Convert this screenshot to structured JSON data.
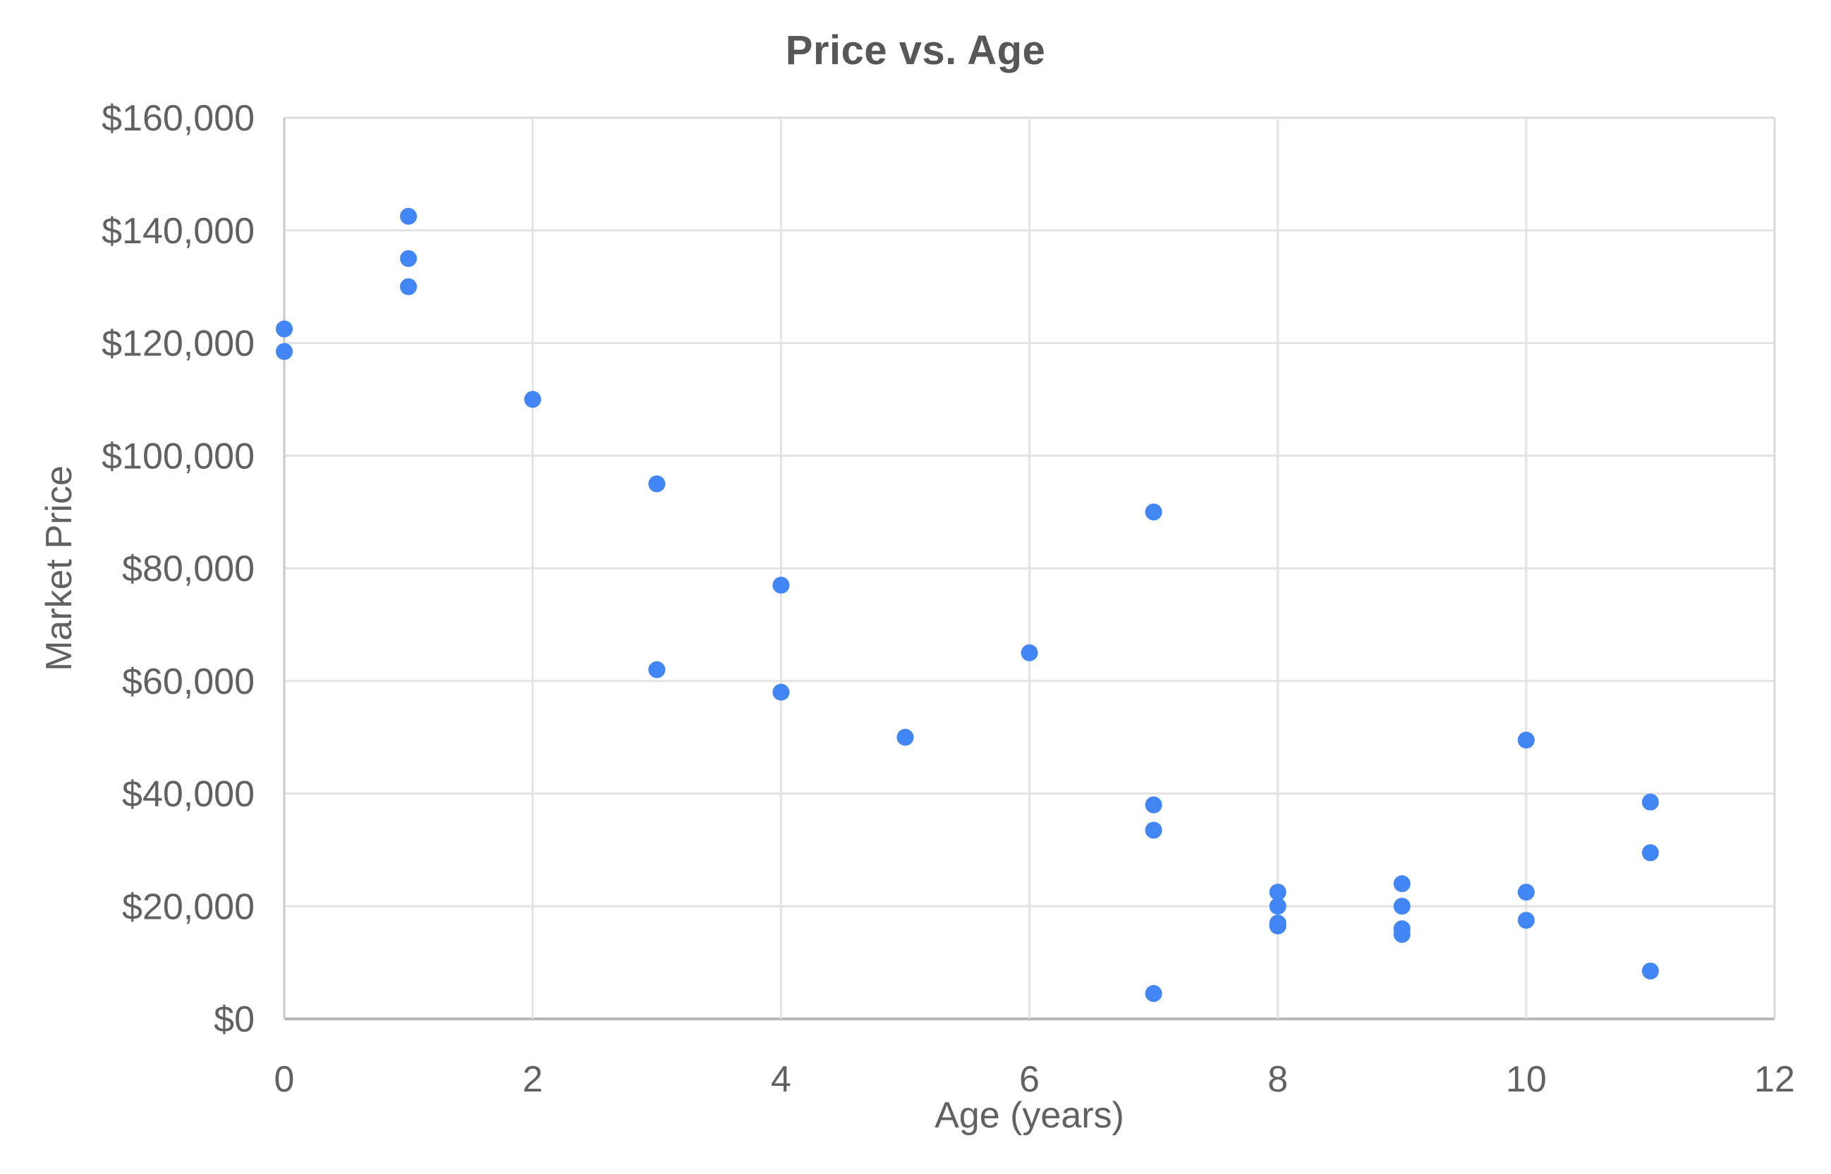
{
  "chart_data": {
    "type": "scatter",
    "title": "Price vs. Age",
    "xlabel": "Age (years)",
    "ylabel": "Market Price",
    "xlim": [
      0,
      12
    ],
    "ylim": [
      0,
      160000
    ],
    "x_ticks": [
      0,
      2,
      4,
      6,
      8,
      10,
      12
    ],
    "y_ticks": [
      {
        "value": 0,
        "label": "$0"
      },
      {
        "value": 20000,
        "label": "$20,000"
      },
      {
        "value": 40000,
        "label": "$40,000"
      },
      {
        "value": 60000,
        "label": "$60,000"
      },
      {
        "value": 80000,
        "label": "$80,000"
      },
      {
        "value": 100000,
        "label": "$100,000"
      },
      {
        "value": 120000,
        "label": "$120,000"
      },
      {
        "value": 140000,
        "label": "$140,000"
      },
      {
        "value": 160000,
        "label": "$160,000"
      }
    ],
    "grid": true,
    "legend": "none",
    "point_color": "#4285F4",
    "point_radius": 12,
    "points": [
      {
        "age": 0,
        "price": 122500
      },
      {
        "age": 0,
        "price": 118500
      },
      {
        "age": 1,
        "price": 142500
      },
      {
        "age": 1,
        "price": 135000
      },
      {
        "age": 1,
        "price": 130000
      },
      {
        "age": 2,
        "price": 110000
      },
      {
        "age": 3,
        "price": 95000
      },
      {
        "age": 3,
        "price": 62000
      },
      {
        "age": 4,
        "price": 77000
      },
      {
        "age": 4,
        "price": 58000
      },
      {
        "age": 5,
        "price": 50000
      },
      {
        "age": 6,
        "price": 65000
      },
      {
        "age": 7,
        "price": 90000
      },
      {
        "age": 7,
        "price": 38000
      },
      {
        "age": 7,
        "price": 33500
      },
      {
        "age": 7,
        "price": 4500
      },
      {
        "age": 8,
        "price": 22500
      },
      {
        "age": 8,
        "price": 20000
      },
      {
        "age": 8,
        "price": 17000
      },
      {
        "age": 8,
        "price": 16500
      },
      {
        "age": 9,
        "price": 24000
      },
      {
        "age": 9,
        "price": 20000
      },
      {
        "age": 9,
        "price": 16000
      },
      {
        "age": 9,
        "price": 15000
      },
      {
        "age": 10,
        "price": 49500
      },
      {
        "age": 10,
        "price": 22500
      },
      {
        "age": 10,
        "price": 17500
      },
      {
        "age": 11,
        "price": 38500
      },
      {
        "age": 11,
        "price": 29500
      },
      {
        "age": 11,
        "price": 8500
      }
    ],
    "colors": {
      "gridline": "#e3e3e3",
      "border_top_right": "#dadada",
      "axis_left": "#c9c9c9",
      "axis_bottom": "#b7b7b7",
      "title_text": "#575757",
      "label_text": "#616161"
    }
  }
}
